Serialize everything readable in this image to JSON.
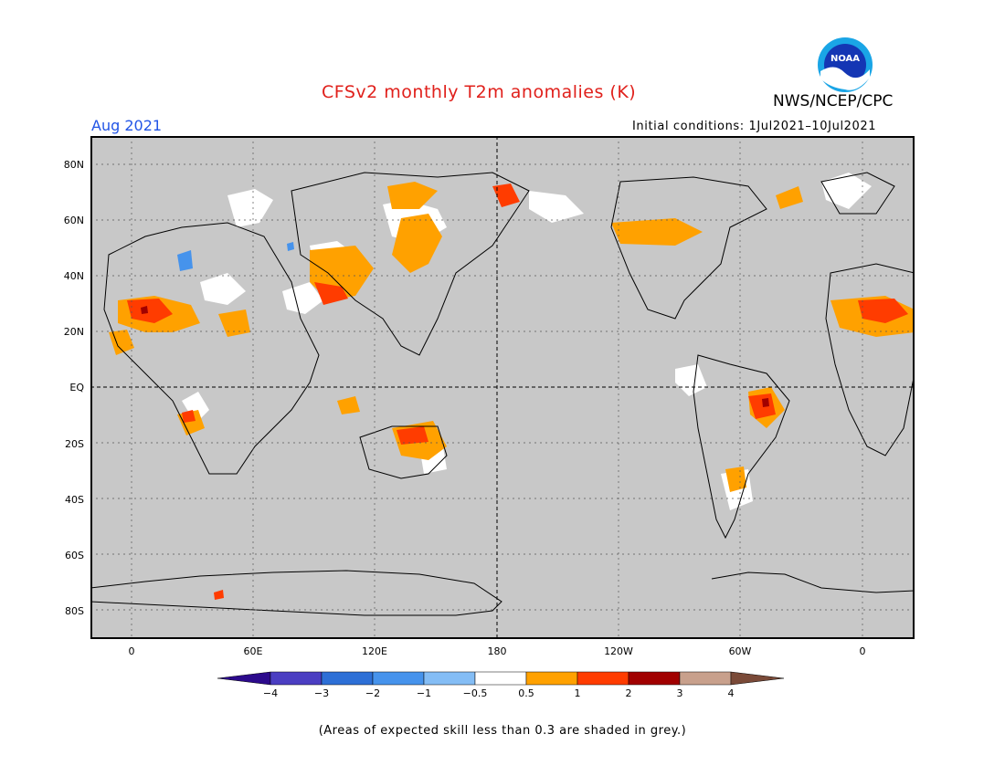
{
  "title": "CFSv2 monthly T2m anomalies (K)",
  "organization": "NWS/NCEP/CPC",
  "logo_text": "NOAA",
  "valid_month": "Aug 2021",
  "initial_conditions": "Initial conditions: 1Jul2021–10Jul2021",
  "lat_labels": [
    "80N",
    "60N",
    "40N",
    "20N",
    "EQ",
    "20S",
    "40S",
    "60S",
    "80S"
  ],
  "lon_labels": [
    "0",
    "60E",
    "120E",
    "180",
    "120W",
    "60W",
    "0"
  ],
  "colorbar": {
    "labels": [
      "−4",
      "−3",
      "−2",
      "−1",
      "−0.5",
      "0.5",
      "1",
      "2",
      "3",
      "4"
    ],
    "colors": [
      "#2c0a8c",
      "#4b3ec2",
      "#2d6fd6",
      "#4693ec",
      "#84bdf5",
      "#ffffff",
      "#ffa100",
      "#ff3c00",
      "#a10000",
      "#c8a08c",
      "#7a4a38"
    ]
  },
  "footnote": "(Areas of expected skill less than 0.3 are shaded in grey.)",
  "colors": {
    "title": "#e0201b",
    "month": "#2255e6",
    "ocean_grey": "#c8c8c8",
    "warm_1": "#ffa100",
    "warm_2": "#ff3c00",
    "warm_3": "#a10000",
    "neutral": "#ffffff",
    "cool_1": "#4693ec"
  }
}
